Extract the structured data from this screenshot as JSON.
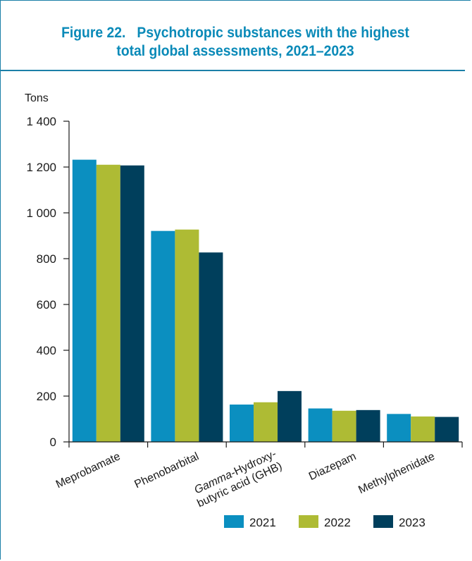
{
  "figure": {
    "title_line1": "Figure 22.   Psychotropic substances with the highest",
    "title_line2": "total global assessments, 2021–2023"
  },
  "chart_data": {
    "type": "bar",
    "ylabel": "Tons",
    "ylim": [
      0,
      1400
    ],
    "yticks": [
      0,
      200,
      400,
      600,
      800,
      1000,
      1200,
      1400
    ],
    "ytick_labels": [
      "0",
      "200",
      "400",
      "600",
      "800",
      "1 000",
      "1 200",
      "1 400"
    ],
    "categories": [
      [
        "Meprobamate"
      ],
      [
        "Phenobarbital"
      ],
      [
        "Gamma-Hydroxy-",
        "butyric acid (GHB)"
      ],
      [
        "Diazepam"
      ],
      [
        "Methylphenidate"
      ]
    ],
    "series": [
      {
        "name": "2021",
        "color": "#0b8fc0",
        "values": [
          1232,
          921,
          163,
          146,
          122
        ]
      },
      {
        "name": "2022",
        "color": "#aebb34",
        "values": [
          1210,
          927,
          173,
          136,
          111
        ]
      },
      {
        "name": "2023",
        "color": "#003f5c",
        "values": [
          1207,
          827,
          222,
          139,
          109
        ]
      }
    ],
    "legend_position": "bottom",
    "grid": false
  }
}
